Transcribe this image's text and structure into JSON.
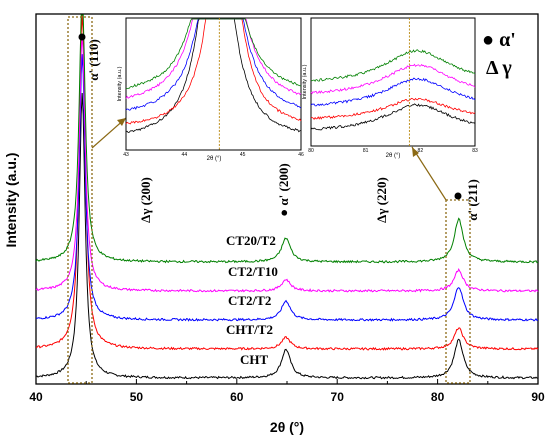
{
  "chart_data": {
    "type": "line",
    "xlabel": "2θ (°)",
    "ylabel": "Intensity (a.u.)",
    "xlim": [
      40,
      90
    ],
    "x_ticks": [
      40,
      50,
      60,
      70,
      80,
      90
    ],
    "x_tick_labels": [
      "40",
      "50",
      "60",
      "70",
      "80",
      "90"
    ],
    "grid": false,
    "series": [
      {
        "name": "CHT",
        "color": "#000000",
        "offset": 0,
        "peaks": [
          [
            44.6,
            300
          ],
          [
            64.9,
            30
          ],
          [
            82.1,
            40
          ]
        ]
      },
      {
        "name": "CHT/T2",
        "color": "#ff0000",
        "offset": 1,
        "peaks": [
          [
            44.6,
            360
          ],
          [
            64.9,
            12
          ],
          [
            82.1,
            22
          ]
        ]
      },
      {
        "name": "CT2/T2",
        "color": "#0000ff",
        "offset": 2,
        "peaks": [
          [
            44.6,
            280
          ],
          [
            64.9,
            20
          ],
          [
            82.1,
            35
          ]
        ]
      },
      {
        "name": "CT2/T10",
        "color": "#ff00ff",
        "offset": 3,
        "peaks": [
          [
            44.6,
            270
          ],
          [
            64.9,
            12
          ],
          [
            82.1,
            22
          ]
        ]
      },
      {
        "name": "CT20/T2",
        "color": "#008000",
        "offset": 4,
        "peaks": [
          [
            44.6,
            290
          ],
          [
            64.9,
            25
          ],
          [
            82.1,
            45
          ]
        ]
      }
    ],
    "annotations": {
      "alpha_110": "α' (110)",
      "alpha_200": "● α' (200)",
      "alpha_211": "α' (211)",
      "gamma_200": "Δγ (200)",
      "gamma_220": "Δγ (220)",
      "legend_alpha": "● α'",
      "legend_gamma": "Δ γ"
    },
    "insets": [
      {
        "xlim": [
          43,
          46
        ],
        "x_ticks": [
          "43",
          "44",
          "45",
          "46"
        ],
        "xlabel": "2θ (°)",
        "ylabel": "Intensity (a.u.)",
        "marker_x": 44.6
      },
      {
        "xlim": [
          80,
          83
        ],
        "x_ticks": [
          "80",
          "81",
          "82",
          "83"
        ],
        "xlabel": "2θ (°)",
        "ylabel": "Intensity (a.u.)",
        "marker_x": 81.8
      }
    ]
  }
}
